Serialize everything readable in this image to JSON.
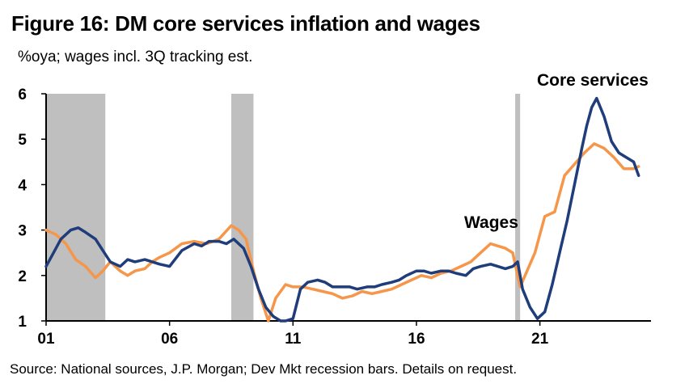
{
  "header": {
    "title": "Figure 16: DM core services inflation and wages",
    "subtitle": "%oya; wages incl. 3Q tracking est."
  },
  "footer": {
    "source": "Source: National sources, J.P. Morgan; Dev Mkt recession bars. Details on request."
  },
  "colors": {
    "core_services": "#1f3d7a",
    "wages": "#f5964a",
    "recession": "#bfbfbf",
    "axis": "#000000"
  },
  "chart_data": {
    "type": "line",
    "title": "Figure 16: DM core services inflation and wages",
    "subtitle": "%oya; wages incl. 3Q tracking est.",
    "xlabel": "",
    "ylabel": "",
    "xlim": [
      2001.0,
      2025.5
    ],
    "ylim": [
      1,
      6
    ],
    "yticks": [
      1,
      2,
      3,
      4,
      5,
      6
    ],
    "ytick_labels": [
      "1",
      "2",
      "3",
      "4",
      "5",
      "6"
    ],
    "xticks": [
      2001,
      2006,
      2011,
      2016,
      2021
    ],
    "xtick_labels": [
      "01",
      "06",
      "11",
      "16",
      "21"
    ],
    "grid": false,
    "recession_bars": [
      [
        2001.0,
        2003.4
      ],
      [
        2008.5,
        2009.4
      ],
      [
        2020.0,
        2020.2
      ]
    ],
    "annotations": [
      {
        "text": "Core services",
        "series": "Core services"
      },
      {
        "text": "Wages",
        "series": "Wages"
      }
    ],
    "series": [
      {
        "name": "Core services",
        "color": "#1f3d7a",
        "x": [
          2001.0,
          2001.3,
          2001.6,
          2002.0,
          2002.3,
          2002.6,
          2003.0,
          2003.3,
          2003.6,
          2004.0,
          2004.3,
          2004.6,
          2005.0,
          2005.3,
          2005.6,
          2006.0,
          2006.5,
          2007.0,
          2007.3,
          2007.6,
          2008.0,
          2008.3,
          2008.6,
          2009.0,
          2009.3,
          2009.6,
          2009.9,
          2010.2,
          2010.5,
          2010.7,
          2011.0,
          2011.3,
          2011.6,
          2012.0,
          2012.3,
          2012.6,
          2013.0,
          2013.3,
          2013.6,
          2014.0,
          2014.3,
          2014.6,
          2015.0,
          2015.3,
          2015.6,
          2016.0,
          2016.3,
          2016.6,
          2017.0,
          2017.3,
          2017.6,
          2018.0,
          2018.3,
          2018.6,
          2019.0,
          2019.3,
          2019.6,
          2019.9,
          2020.1,
          2020.3,
          2020.6,
          2020.9,
          2021.2,
          2021.5,
          2021.8,
          2022.1,
          2022.4,
          2022.7,
          2022.9,
          2023.1,
          2023.3,
          2023.6,
          2023.9,
          2024.2,
          2024.5,
          2024.8,
          2025.0
        ],
        "values": [
          2.2,
          2.5,
          2.8,
          3.0,
          3.05,
          2.95,
          2.8,
          2.55,
          2.3,
          2.2,
          2.35,
          2.3,
          2.35,
          2.3,
          2.25,
          2.2,
          2.55,
          2.7,
          2.65,
          2.75,
          2.75,
          2.7,
          2.8,
          2.6,
          2.2,
          1.7,
          1.3,
          1.1,
          1.0,
          1.0,
          1.05,
          1.7,
          1.85,
          1.9,
          1.85,
          1.75,
          1.75,
          1.75,
          1.7,
          1.75,
          1.75,
          1.8,
          1.85,
          1.9,
          2.0,
          2.1,
          2.1,
          2.05,
          2.1,
          2.1,
          2.05,
          2.0,
          2.15,
          2.2,
          2.25,
          2.2,
          2.15,
          2.2,
          2.3,
          1.7,
          1.3,
          1.05,
          1.2,
          1.8,
          2.5,
          3.2,
          4.0,
          4.8,
          5.3,
          5.7,
          5.9,
          5.5,
          4.95,
          4.7,
          4.6,
          4.5,
          4.2
        ]
      },
      {
        "name": "Wages",
        "color": "#f5964a",
        "x": [
          2001.0,
          2001.4,
          2001.8,
          2002.2,
          2002.6,
          2003.0,
          2003.3,
          2003.6,
          2004.0,
          2004.3,
          2004.6,
          2005.0,
          2005.3,
          2005.6,
          2006.0,
          2006.5,
          2007.0,
          2007.5,
          2008.0,
          2008.5,
          2008.8,
          2009.1,
          2009.4,
          2009.7,
          2010.0,
          2010.3,
          2010.7,
          2011.0,
          2011.4,
          2011.8,
          2012.2,
          2012.6,
          2013.0,
          2013.4,
          2013.8,
          2014.2,
          2014.6,
          2015.0,
          2015.4,
          2015.8,
          2016.2,
          2016.6,
          2017.0,
          2017.4,
          2017.8,
          2018.2,
          2018.6,
          2019.0,
          2019.3,
          2019.6,
          2019.9,
          2020.2,
          2020.4,
          2020.8,
          2021.2,
          2021.6,
          2022.0,
          2022.4,
          2022.8,
          2023.2,
          2023.6,
          2024.0,
          2024.4,
          2024.8,
          2025.0
        ],
        "values": [
          3.0,
          2.9,
          2.7,
          2.35,
          2.2,
          1.95,
          2.1,
          2.3,
          2.1,
          2.0,
          2.1,
          2.15,
          2.3,
          2.4,
          2.5,
          2.7,
          2.75,
          2.7,
          2.8,
          3.1,
          3.0,
          2.8,
          2.1,
          1.5,
          1.0,
          1.5,
          1.8,
          1.75,
          1.75,
          1.7,
          1.65,
          1.6,
          1.5,
          1.55,
          1.65,
          1.6,
          1.65,
          1.7,
          1.8,
          1.9,
          2.0,
          1.95,
          2.05,
          2.1,
          2.2,
          2.3,
          2.5,
          2.7,
          2.65,
          2.6,
          2.5,
          1.75,
          2.0,
          2.5,
          3.3,
          3.4,
          4.2,
          4.45,
          4.7,
          4.9,
          4.8,
          4.6,
          4.35,
          4.35,
          4.4
        ]
      }
    ]
  }
}
